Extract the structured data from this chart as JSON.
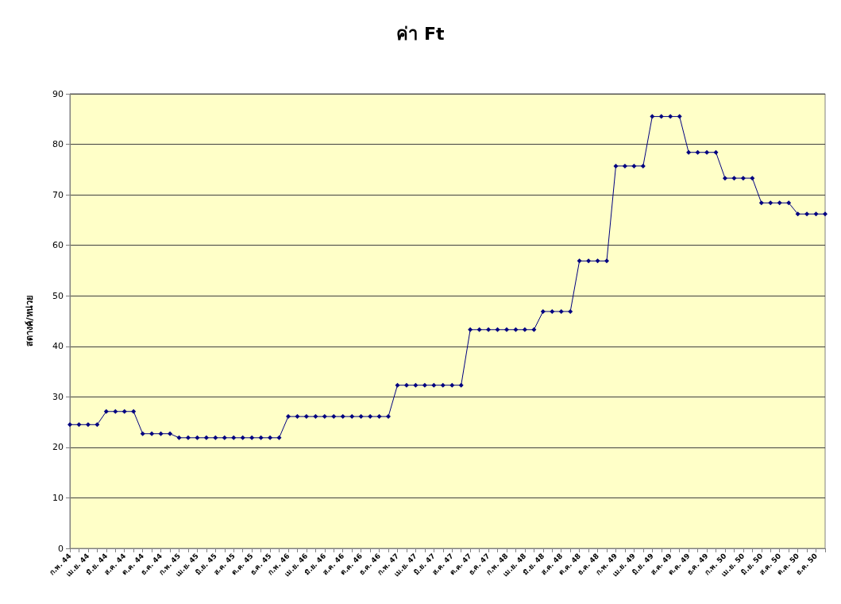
{
  "chart_data": {
    "type": "line",
    "title": "ค่า Ft",
    "ylabel": "สตางค์/หน่วย",
    "categories": [
      "ก.พ. 44",
      null,
      "เม.ย. 44",
      null,
      "มิ.ย. 44",
      null,
      "ส.ค. 44",
      null,
      "ต.ค. 44",
      null,
      "ธ.ค. 44",
      null,
      "ก.พ. 45",
      null,
      "เม.ย. 45",
      null,
      "มิ.ย. 45",
      null,
      "ส.ค. 45",
      null,
      "ต.ค. 45",
      null,
      "ธ.ค. 45",
      null,
      "ก.พ. 46",
      null,
      "เม.ย. 46",
      null,
      "มิ.ย. 46",
      null,
      "ส.ค. 46",
      null,
      "ต.ค. 46",
      null,
      "ธ.ค. 46",
      null,
      "ก.พ. 47",
      null,
      "เม.ย. 47",
      null,
      "มิ.ย. 47",
      null,
      "ส.ค. 47",
      null,
      "ต.ค. 47",
      null,
      "ธ.ค. 47",
      null,
      "ก.พ. 48",
      null,
      "เม.ย. 48",
      null,
      "มิ.ย. 48",
      null,
      "ส.ค. 48",
      null,
      "ต.ค. 48",
      null,
      "ธ.ค. 48",
      null,
      "ก.พ. 49",
      null,
      "เม.ย. 49",
      null,
      "มิ.ย. 49",
      null,
      "ส.ค. 49",
      null,
      "ต.ค. 49",
      null,
      "ธ.ค. 49",
      null,
      "ก.พ. 50",
      null,
      "เม.ย. 50",
      null,
      "มิ.ย. 50",
      null,
      "ส.ค. 50",
      null,
      "ต.ค. 50",
      null,
      "ธ.ค. 50",
      null
    ],
    "series": [
      {
        "color": "#000080",
        "values": [
          24.5,
          24.5,
          24.5,
          24.5,
          27.1,
          27.1,
          27.1,
          27.1,
          22.7,
          22.7,
          22.7,
          22.7,
          21.9,
          21.9,
          21.9,
          21.9,
          21.9,
          21.9,
          21.9,
          21.9,
          21.9,
          21.9,
          21.9,
          21.9,
          26.1,
          26.1,
          26.1,
          26.1,
          26.1,
          26.1,
          26.1,
          26.1,
          26.1,
          26.1,
          26.1,
          26.1,
          32.3,
          32.3,
          32.3,
          32.3,
          32.3,
          32.3,
          32.3,
          32.3,
          43.3,
          43.3,
          43.3,
          43.3,
          43.3,
          43.3,
          43.3,
          43.3,
          46.9,
          46.9,
          46.9,
          46.9,
          56.9,
          56.9,
          56.9,
          56.9,
          75.7,
          75.7,
          75.7,
          75.7,
          85.5,
          85.5,
          85.5,
          85.5,
          78.4,
          78.4,
          78.4,
          78.4,
          73.3,
          73.3,
          73.3,
          73.3,
          68.4,
          68.4,
          68.4,
          68.4,
          66.2,
          66.2,
          66.2,
          66.2
        ]
      }
    ],
    "ylim": [
      0,
      90
    ],
    "yticks": [
      0,
      10,
      20,
      30,
      40,
      50,
      60,
      70,
      80,
      90
    ],
    "grid": "y",
    "marker": "diamond",
    "line_style": "solid"
  }
}
